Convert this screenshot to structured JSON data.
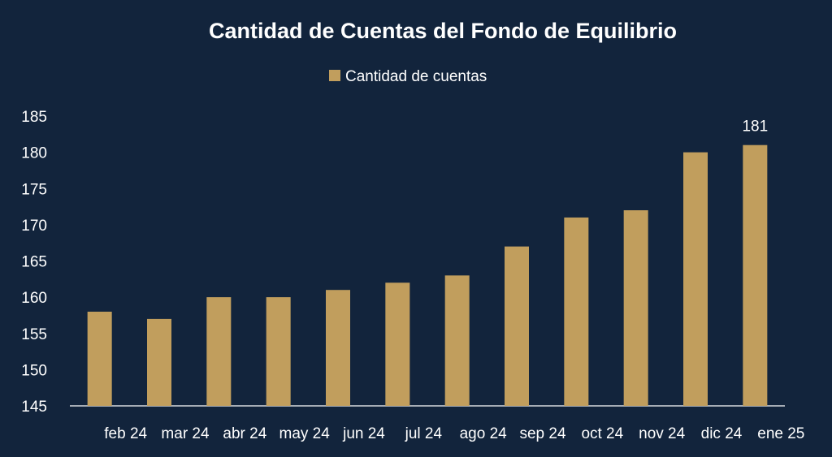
{
  "chart_data": {
    "type": "bar",
    "title": "Cantidad de Cuentas del Fondo de Equilibrio",
    "categories": [
      "feb 24",
      "mar 24",
      "abr 24",
      "may 24",
      "jun 24",
      "jul 24",
      "ago 24",
      "sep 24",
      "oct 24",
      "nov 24",
      "dic 24",
      "ene 25"
    ],
    "series": [
      {
        "name": "Cantidad de cuentas",
        "values": [
          158,
          157,
          160,
          160,
          161,
          162,
          163,
          167,
          171,
          172,
          180,
          181
        ],
        "color": "#c19e5d"
      }
    ],
    "data_labels": [
      {
        "category": "ene 25",
        "value": 181
      }
    ],
    "ylim": [
      145,
      185
    ],
    "yticks": [
      145,
      150,
      155,
      160,
      165,
      170,
      175,
      180,
      185
    ],
    "xlabel": "",
    "ylabel": "",
    "grid": false,
    "legend_position": "top"
  },
  "colors": {
    "background": "#12243c",
    "text": "#ffffff",
    "axis": "#ffffff"
  }
}
